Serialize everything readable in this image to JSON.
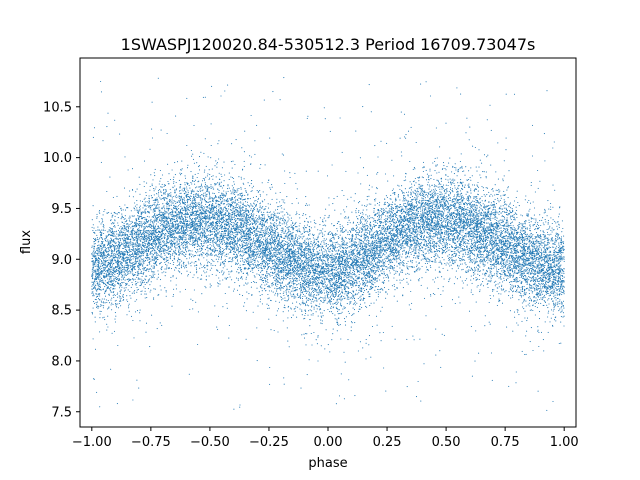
{
  "chart_data": {
    "type": "scatter",
    "title": "1SWASPJ120020.84-530512.3 Period 16709.73047s",
    "xlabel": "phase",
    "ylabel": "flux",
    "xlim": [
      -1.05,
      1.05
    ],
    "ylim": [
      7.35,
      10.98
    ],
    "x_ticks": [
      -1.0,
      -0.75,
      -0.5,
      -0.25,
      0.0,
      0.25,
      0.5,
      0.75,
      1.0
    ],
    "x_tick_labels": [
      "−1.00",
      "−0.75",
      "−0.50",
      "−0.25",
      "0.00",
      "0.25",
      "0.50",
      "0.75",
      "1.00"
    ],
    "y_ticks": [
      7.5,
      8.0,
      8.5,
      9.0,
      9.5,
      10.0,
      10.5
    ],
    "y_tick_labels": [
      "7.5",
      "8.0",
      "8.5",
      "9.0",
      "9.5",
      "10.0",
      "10.5"
    ],
    "grid": false,
    "legend": "none",
    "marker_color": "#1f77b4",
    "series": [
      {
        "phase_range": [
          -1.0,
          1.0
        ],
        "trend_phase": [
          -1.0,
          -0.9,
          -0.8,
          -0.7,
          -0.6,
          -0.5,
          -0.4,
          -0.3,
          -0.2,
          -0.1,
          0.0,
          0.1,
          0.2,
          0.3,
          0.4,
          0.5,
          0.6,
          0.7,
          0.8,
          0.9,
          1.0
        ],
        "trend_flux": [
          8.9,
          9.0,
          9.15,
          9.3,
          9.37,
          9.38,
          9.32,
          9.2,
          9.05,
          8.92,
          8.88,
          8.95,
          9.1,
          9.27,
          9.37,
          9.38,
          9.33,
          9.2,
          9.05,
          8.95,
          8.9
        ],
        "scatter_sigma": 0.22,
        "outlier_range": [
          7.5,
          10.8
        ],
        "approx_point_count": 18000
      }
    ]
  }
}
